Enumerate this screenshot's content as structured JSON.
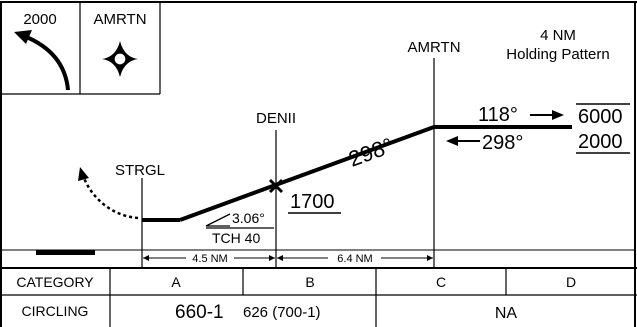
{
  "missed_approach_box": {
    "initial_climb": "2000",
    "holding_fix": "AMRTN"
  },
  "profile": {
    "faf_name": "AMRTN",
    "holding_note_line1": "4 NM",
    "holding_note_line2": "Holding Pattern",
    "outbound_course": "118°",
    "inbound_course": "298°",
    "max_holding_alt": "6000",
    "min_holding_alt": "2000",
    "final_course": "298°",
    "stepdown_fix": "DENII",
    "stepdown_alt": "1700",
    "map_fix": "STRGL",
    "glidepath_angle": "3.06°",
    "tch": "TCH 40",
    "dist_map_to_denii": "4.5 NM",
    "dist_denii_to_amrtn": "6.4 NM"
  },
  "minimums": {
    "header_label": "CATEGORY",
    "categories": [
      "A",
      "B",
      "C",
      "D"
    ],
    "circling_label": "CIRCLING",
    "ab_mda": "660-1",
    "ab_hat": "626 (700-1)",
    "cd_value": "NA"
  }
}
